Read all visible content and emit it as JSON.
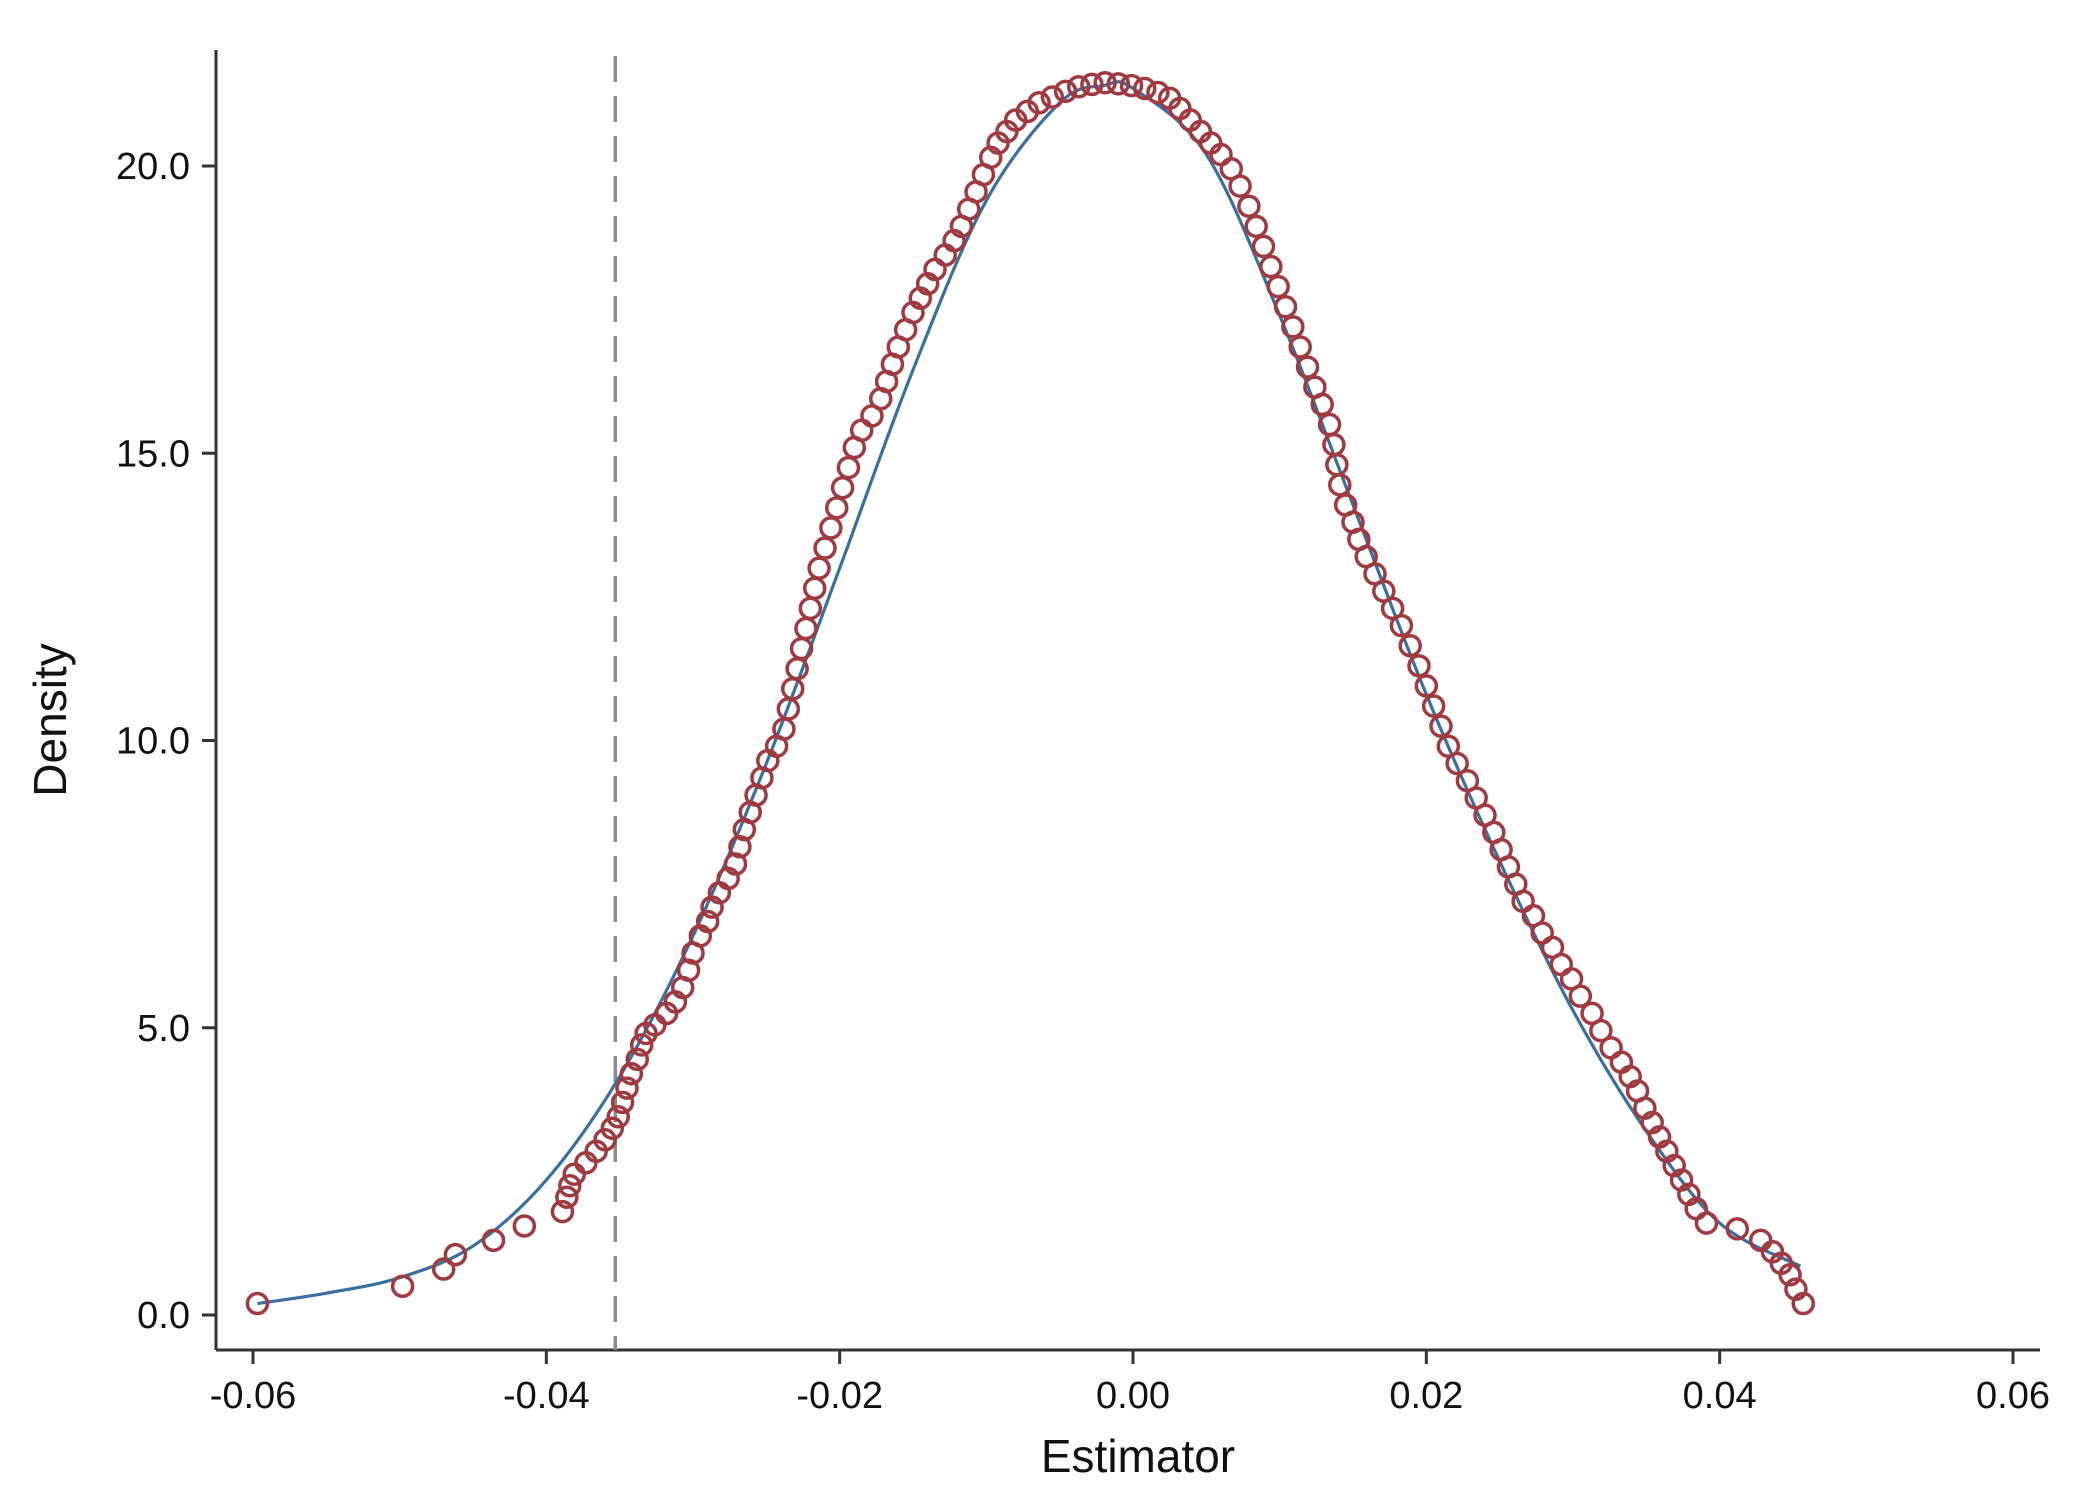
{
  "chart_data": {
    "type": "scatter",
    "title": "",
    "xlabel": "Estimator",
    "ylabel": "Density",
    "xlim": [
      -0.06,
      0.06
    ],
    "ylim": [
      -0.6,
      22.0
    ],
    "x_ticks": [
      -0.06,
      -0.04,
      -0.02,
      0.0,
      0.02,
      0.04,
      0.06
    ],
    "x_tick_labels": [
      "-0.06",
      "-0.04",
      "-0.02",
      "0.00",
      "0.02",
      "0.04",
      "0.06"
    ],
    "y_ticks": [
      0,
      5,
      10,
      15,
      20
    ],
    "y_tick_labels": [
      "0.0",
      "5.0",
      "10.0",
      "15.0",
      "20.0"
    ],
    "grid": false,
    "reference_line": {
      "x": -0.0353,
      "style": "dashed",
      "color": "#8c8c8c"
    },
    "fitted_curve": {
      "type": "line",
      "color": "#3a6f9f",
      "x": [
        -0.0597,
        -0.055,
        -0.05,
        -0.045,
        -0.04,
        -0.035,
        -0.03,
        -0.025,
        -0.02,
        -0.015,
        -0.01,
        -0.005,
        -0.002,
        0.0,
        0.005,
        0.01,
        0.015,
        0.02,
        0.025,
        0.03,
        0.035,
        0.04,
        0.0455
      ],
      "y": [
        0.2,
        0.38,
        0.65,
        1.2,
        2.35,
        4.15,
        6.6,
        9.6,
        13.0,
        16.45,
        19.4,
        21.1,
        21.4,
        21.35,
        20.2,
        17.4,
        14.1,
        10.8,
        7.9,
        5.3,
        3.2,
        1.6,
        0.85
      ]
    },
    "scatter_series": {
      "marker": "hollow-circle",
      "color": "#9e3a40",
      "points": [
        [
          -0.0597,
          0.2
        ],
        [
          -0.0498,
          0.5
        ],
        [
          -0.047,
          0.8
        ],
        [
          -0.0462,
          1.05
        ],
        [
          -0.0436,
          1.3
        ],
        [
          -0.0415,
          1.55
        ],
        [
          -0.0389,
          1.8
        ],
        [
          -0.0386,
          2.05
        ],
        [
          -0.0384,
          2.25
        ],
        [
          -0.0381,
          2.45
        ],
        [
          -0.0373,
          2.65
        ],
        [
          -0.0366,
          2.85
        ],
        [
          -0.036,
          3.05
        ],
        [
          -0.0355,
          3.25
        ],
        [
          -0.0351,
          3.45
        ],
        [
          -0.0348,
          3.7
        ],
        [
          -0.0345,
          3.95
        ],
        [
          -0.0342,
          4.2
        ],
        [
          -0.0338,
          4.45
        ],
        [
          -0.0335,
          4.7
        ],
        [
          -0.0332,
          4.9
        ],
        [
          -0.0326,
          5.05
        ],
        [
          -0.0318,
          5.25
        ],
        [
          -0.0312,
          5.45
        ],
        [
          -0.0307,
          5.7
        ],
        [
          -0.0303,
          6.0
        ],
        [
          -0.03,
          6.3
        ],
        [
          -0.0295,
          6.6
        ],
        [
          -0.029,
          6.85
        ],
        [
          -0.0287,
          7.1
        ],
        [
          -0.0282,
          7.35
        ],
        [
          -0.0276,
          7.6
        ],
        [
          -0.0271,
          7.85
        ],
        [
          -0.0268,
          8.15
        ],
        [
          -0.0265,
          8.45
        ],
        [
          -0.0261,
          8.75
        ],
        [
          -0.0257,
          9.05
        ],
        [
          -0.0253,
          9.35
        ],
        [
          -0.0249,
          9.65
        ],
        [
          -0.0243,
          9.9
        ],
        [
          -0.0238,
          10.2
        ],
        [
          -0.0235,
          10.55
        ],
        [
          -0.0232,
          10.9
        ],
        [
          -0.0229,
          11.25
        ],
        [
          -0.0226,
          11.6
        ],
        [
          -0.0223,
          11.95
        ],
        [
          -0.022,
          12.3
        ],
        [
          -0.0217,
          12.65
        ],
        [
          -0.0214,
          13.0
        ],
        [
          -0.021,
          13.35
        ],
        [
          -0.0206,
          13.7
        ],
        [
          -0.0202,
          14.05
        ],
        [
          -0.0198,
          14.4
        ],
        [
          -0.0194,
          14.75
        ],
        [
          -0.019,
          15.1
        ],
        [
          -0.0185,
          15.4
        ],
        [
          -0.0178,
          15.65
        ],
        [
          -0.0172,
          15.95
        ],
        [
          -0.0168,
          16.25
        ],
        [
          -0.0164,
          16.55
        ],
        [
          -0.016,
          16.85
        ],
        [
          -0.0155,
          17.15
        ],
        [
          -0.015,
          17.45
        ],
        [
          -0.0145,
          17.7
        ],
        [
          -0.014,
          17.95
        ],
        [
          -0.0135,
          18.2
        ],
        [
          -0.0128,
          18.45
        ],
        [
          -0.0122,
          18.7
        ],
        [
          -0.0117,
          18.95
        ],
        [
          -0.0112,
          19.25
        ],
        [
          -0.0107,
          19.55
        ],
        [
          -0.0102,
          19.85
        ],
        [
          -0.0097,
          20.15
        ],
        [
          -0.0092,
          20.4
        ],
        [
          -0.0086,
          20.6
        ],
        [
          -0.008,
          20.8
        ],
        [
          -0.0072,
          20.95
        ],
        [
          -0.0064,
          21.1
        ],
        [
          -0.0055,
          21.2
        ],
        [
          -0.0046,
          21.3
        ],
        [
          -0.0037,
          21.38
        ],
        [
          -0.0028,
          21.42
        ],
        [
          -0.0019,
          21.45
        ],
        [
          -0.001,
          21.43
        ],
        [
          -0.0001,
          21.4
        ],
        [
          0.0008,
          21.35
        ],
        [
          0.0017,
          21.28
        ],
        [
          0.0025,
          21.18
        ],
        [
          0.0032,
          21.0
        ],
        [
          0.0039,
          20.8
        ],
        [
          0.0046,
          20.6
        ],
        [
          0.0053,
          20.4
        ],
        [
          0.006,
          20.2
        ],
        [
          0.0067,
          19.95
        ],
        [
          0.0073,
          19.65
        ],
        [
          0.0079,
          19.3
        ],
        [
          0.0084,
          18.95
        ],
        [
          0.0089,
          18.6
        ],
        [
          0.0094,
          18.25
        ],
        [
          0.0099,
          17.9
        ],
        [
          0.0104,
          17.55
        ],
        [
          0.0109,
          17.2
        ],
        [
          0.0114,
          16.85
        ],
        [
          0.0119,
          16.5
        ],
        [
          0.0124,
          16.15
        ],
        [
          0.0129,
          15.85
        ],
        [
          0.0134,
          15.5
        ],
        [
          0.0137,
          15.15
        ],
        [
          0.0139,
          14.8
        ],
        [
          0.0141,
          14.45
        ],
        [
          0.0145,
          14.1
        ],
        [
          0.015,
          13.8
        ],
        [
          0.0154,
          13.5
        ],
        [
          0.0159,
          13.2
        ],
        [
          0.0165,
          12.9
        ],
        [
          0.0171,
          12.6
        ],
        [
          0.0177,
          12.3
        ],
        [
          0.0183,
          12.0
        ],
        [
          0.0189,
          11.65
        ],
        [
          0.0195,
          11.3
        ],
        [
          0.02,
          10.95
        ],
        [
          0.0205,
          10.6
        ],
        [
          0.021,
          10.25
        ],
        [
          0.0215,
          9.9
        ],
        [
          0.0221,
          9.6
        ],
        [
          0.0228,
          9.3
        ],
        [
          0.0234,
          9.0
        ],
        [
          0.024,
          8.7
        ],
        [
          0.0246,
          8.4
        ],
        [
          0.0251,
          8.1
        ],
        [
          0.0256,
          7.8
        ],
        [
          0.0261,
          7.5
        ],
        [
          0.0266,
          7.2
        ],
        [
          0.0273,
          6.95
        ],
        [
          0.0279,
          6.65
        ],
        [
          0.0286,
          6.4
        ],
        [
          0.0292,
          6.1
        ],
        [
          0.0299,
          5.85
        ],
        [
          0.0305,
          5.55
        ],
        [
          0.0313,
          5.25
        ],
        [
          0.0319,
          4.95
        ],
        [
          0.0326,
          4.65
        ],
        [
          0.0333,
          4.4
        ],
        [
          0.0339,
          4.15
        ],
        [
          0.0344,
          3.9
        ],
        [
          0.0349,
          3.6
        ],
        [
          0.0354,
          3.35
        ],
        [
          0.0359,
          3.1
        ],
        [
          0.0364,
          2.85
        ],
        [
          0.0369,
          2.6
        ],
        [
          0.0374,
          2.35
        ],
        [
          0.0379,
          2.1
        ],
        [
          0.0384,
          1.85
        ],
        [
          0.0391,
          1.6
        ],
        [
          0.0412,
          1.5
        ],
        [
          0.0428,
          1.3
        ],
        [
          0.0436,
          1.1
        ],
        [
          0.0442,
          0.9
        ],
        [
          0.0448,
          0.7
        ],
        [
          0.0452,
          0.45
        ],
        [
          0.0457,
          0.2
        ]
      ]
    }
  }
}
